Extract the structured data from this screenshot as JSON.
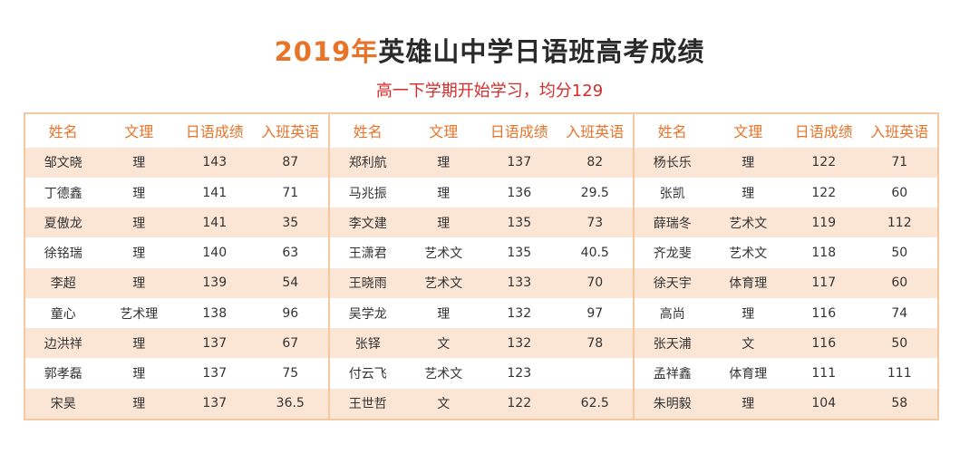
{
  "title": {
    "year": "2019年",
    "rest": "英雄山中学日语班高考成绩"
  },
  "subtitle": "高一下学期开始学习，均分129",
  "columns": [
    "姓名",
    "文理",
    "日语成绩",
    "入班英语"
  ],
  "panels": [
    {
      "rows": [
        [
          "邹文晓",
          "理",
          "143",
          "87"
        ],
        [
          "丁德鑫",
          "理",
          "141",
          "71"
        ],
        [
          "夏傲龙",
          "理",
          "141",
          "35"
        ],
        [
          "徐铭瑞",
          "理",
          "140",
          "63"
        ],
        [
          "李超",
          "理",
          "139",
          "54"
        ],
        [
          "童心",
          "艺术理",
          "138",
          "96"
        ],
        [
          "边洪祥",
          "理",
          "137",
          "67"
        ],
        [
          "郭孝磊",
          "理",
          "137",
          "75"
        ],
        [
          "宋昊",
          "理",
          "137",
          "36.5"
        ]
      ]
    },
    {
      "rows": [
        [
          "郑利航",
          "理",
          "137",
          "82"
        ],
        [
          "马兆振",
          "理",
          "136",
          "29.5"
        ],
        [
          "李文建",
          "理",
          "135",
          "73"
        ],
        [
          "王潇君",
          "艺术文",
          "135",
          "40.5"
        ],
        [
          "王晓雨",
          "艺术文",
          "133",
          "70"
        ],
        [
          "吴学龙",
          "理",
          "132",
          "97"
        ],
        [
          "张铎",
          "文",
          "132",
          "78"
        ],
        [
          "付云飞",
          "艺术文",
          "123",
          ""
        ],
        [
          "王世哲",
          "文",
          "122",
          "62.5"
        ]
      ]
    },
    {
      "rows": [
        [
          "杨长乐",
          "理",
          "122",
          "71"
        ],
        [
          "张凯",
          "理",
          "122",
          "60"
        ],
        [
          "薛瑞冬",
          "艺术文",
          "119",
          "112"
        ],
        [
          "齐龙斐",
          "艺术文",
          "118",
          "50"
        ],
        [
          "徐天宇",
          "体育理",
          "117",
          "60"
        ],
        [
          "高尚",
          "理",
          "116",
          "74"
        ],
        [
          "张天浦",
          "文",
          "116",
          "50"
        ],
        [
          "孟祥鑫",
          "体育理",
          "111",
          "111"
        ],
        [
          "朱明毅",
          "理",
          "104",
          "58"
        ]
      ]
    }
  ]
}
